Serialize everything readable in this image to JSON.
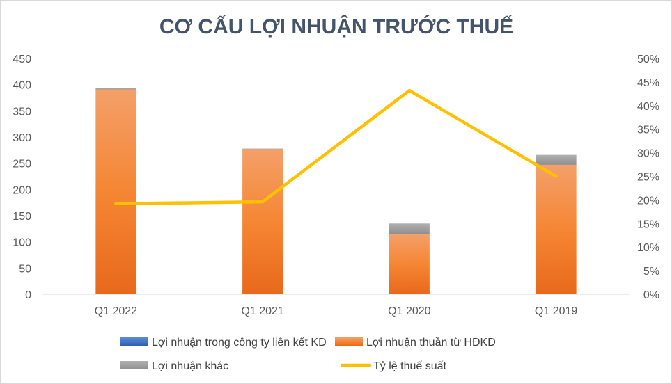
{
  "chart_data": {
    "type": "bar",
    "title": "CƠ CẤU LỢI NHUẬN TRƯỚC THUẾ",
    "categories": [
      "Q1 2022",
      "Q1 2021",
      "Q1 2020",
      "Q1 2019"
    ],
    "y_left": {
      "ylim": [
        0,
        450
      ],
      "ticks": [
        "0",
        "50",
        "100",
        "150",
        "200",
        "250",
        "300",
        "350",
        "400",
        "450"
      ]
    },
    "y_right": {
      "ylim": [
        0,
        0.5
      ],
      "ticks": [
        "0%",
        "5%",
        "10%",
        "15%",
        "20%",
        "25%",
        "30%",
        "35%",
        "40%",
        "45%",
        "50%"
      ]
    },
    "grid": false,
    "legend_position": "bottom",
    "series": [
      {
        "name": "Lợi nhuận trong công ty liên kết KD",
        "kind": "stacked-bar",
        "axis": "left",
        "color": "#4472c4",
        "values": [
          0,
          0,
          0,
          0
        ]
      },
      {
        "name": "Lợi nhuận thuần từ HĐKD",
        "kind": "stacked-bar",
        "axis": "left",
        "color": "#ed7d31",
        "values": [
          391,
          277,
          115,
          247
        ]
      },
      {
        "name": "Lợi nhuận khác",
        "kind": "stacked-bar",
        "axis": "left",
        "color": "#a5a5a5",
        "values": [
          2,
          1,
          20,
          19
        ]
      },
      {
        "name": "Tỷ lệ thuế suất",
        "kind": "line",
        "axis": "right",
        "color": "#ffc000",
        "values": [
          0.192,
          0.196,
          0.432,
          0.25
        ]
      }
    ]
  }
}
